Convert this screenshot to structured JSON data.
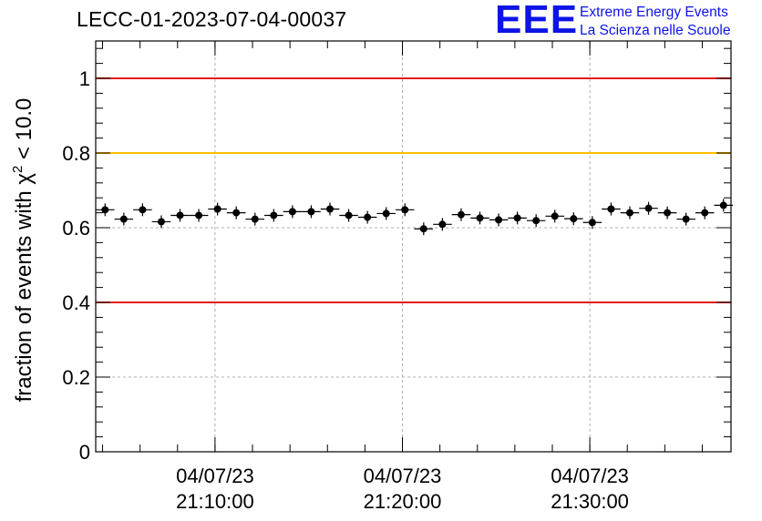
{
  "title": "LECC-01-2023-07-04-00037",
  "logo": {
    "mark": "EEE",
    "line1": "Extreme Energy Events",
    "line2": "La Scienza nelle Scuole",
    "color": "#0d14e6"
  },
  "chart_data": {
    "type": "scatter",
    "title": "LECC-01-2023-07-04-00037",
    "xlabel": "",
    "ylabel": "fraction of events with χ² < 10.0",
    "ylabel_parts": {
      "pre": "fraction of events with ",
      "chi": "χ",
      "sup": "2",
      "post": " < 10.0"
    },
    "x_unit": "minutes",
    "xlim": [
      "21:03:38",
      "21:37:32"
    ],
    "ylim": [
      0,
      1.1
    ],
    "y_ticks": [
      {
        "value": 0,
        "label": "0"
      },
      {
        "value": 0.2,
        "label": "0.2"
      },
      {
        "value": 0.4,
        "label": "0.4"
      },
      {
        "value": 0.6,
        "label": "0.6"
      },
      {
        "value": 0.8,
        "label": "0.8"
      },
      {
        "value": 1.0,
        "label": "1"
      }
    ],
    "x_ticks": [
      {
        "time": "21:10:00",
        "date": "04/07/23",
        "label": "21:10:00"
      },
      {
        "time": "21:20:00",
        "date": "04/07/23",
        "label": "21:20:00"
      },
      {
        "time": "21:30:00",
        "date": "04/07/23",
        "label": "21:30:00"
      }
    ],
    "grid": true,
    "reference_lines": [
      {
        "y": 1.0,
        "color": "#e41a1a"
      },
      {
        "y": 0.8,
        "color": "#ffc000"
      },
      {
        "y": 0.4,
        "color": "#e41a1a"
      }
    ],
    "series": [
      {
        "marker_color": "#000000",
        "points": [
          {
            "x": "21:04:08",
            "y": 0.648
          },
          {
            "x": "21:05:08",
            "y": 0.623
          },
          {
            "x": "21:06:08",
            "y": 0.648
          },
          {
            "x": "21:07:08",
            "y": 0.616
          },
          {
            "x": "21:08:08",
            "y": 0.633
          },
          {
            "x": "21:09:08",
            "y": 0.633
          },
          {
            "x": "21:10:08",
            "y": 0.65
          },
          {
            "x": "21:11:08",
            "y": 0.64
          },
          {
            "x": "21:12:08",
            "y": 0.623
          },
          {
            "x": "21:13:08",
            "y": 0.633
          },
          {
            "x": "21:14:08",
            "y": 0.643
          },
          {
            "x": "21:15:08",
            "y": 0.643
          },
          {
            "x": "21:16:08",
            "y": 0.65
          },
          {
            "x": "21:17:08",
            "y": 0.633
          },
          {
            "x": "21:18:08",
            "y": 0.628
          },
          {
            "x": "21:19:08",
            "y": 0.638
          },
          {
            "x": "21:20:08",
            "y": 0.648
          },
          {
            "x": "21:21:08",
            "y": 0.597
          },
          {
            "x": "21:22:08",
            "y": 0.609
          },
          {
            "x": "21:23:08",
            "y": 0.635
          },
          {
            "x": "21:24:08",
            "y": 0.626
          },
          {
            "x": "21:25:08",
            "y": 0.621
          },
          {
            "x": "21:26:08",
            "y": 0.626
          },
          {
            "x": "21:27:08",
            "y": 0.619
          },
          {
            "x": "21:28:08",
            "y": 0.631
          },
          {
            "x": "21:29:08",
            "y": 0.624
          },
          {
            "x": "21:30:08",
            "y": 0.614
          },
          {
            "x": "21:31:08",
            "y": 0.65
          },
          {
            "x": "21:32:08",
            "y": 0.64
          },
          {
            "x": "21:33:08",
            "y": 0.652
          },
          {
            "x": "21:34:08",
            "y": 0.64
          },
          {
            "x": "21:35:08",
            "y": 0.623
          },
          {
            "x": "21:36:08",
            "y": 0.64
          },
          {
            "x": "21:37:08",
            "y": 0.66
          }
        ]
      }
    ]
  }
}
